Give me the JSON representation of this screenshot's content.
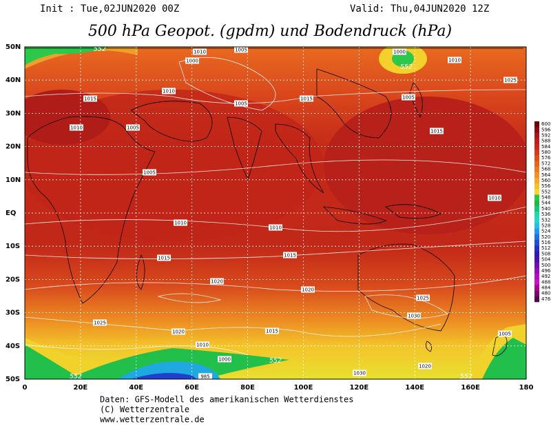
{
  "header": {
    "init": "Init : Tue,02JUN2020 00Z",
    "valid": "Valid: Thu,04JUN2020 12Z",
    "title": "500 hPa Geopot. (gpdm) und Bodendruck (hPa)"
  },
  "map": {
    "lat_labels": [
      "50N",
      "40N",
      "30N",
      "20N",
      "10N",
      "EQ",
      "10S",
      "20S",
      "30S",
      "40S",
      "50S"
    ],
    "lon_labels": [
      "0",
      "20E",
      "40E",
      "60E",
      "80E",
      "100E",
      "120E",
      "140E",
      "160E",
      "180"
    ],
    "isobar_labels": [
      "1010",
      "1005",
      "1000",
      "1010",
      "1000",
      "1010",
      "1015",
      "1005",
      "1015",
      "1005",
      "1025",
      "1015",
      "1010",
      "1005",
      "1005",
      "1010",
      "1010",
      "1010",
      "1015",
      "1015",
      "1020",
      "1020",
      "1025",
      "1030",
      "1025",
      "1015",
      "1020",
      "1010",
      "1030",
      "1020",
      "1005",
      "985",
      "1000"
    ],
    "contour_labels": [
      "552",
      "552",
      "552",
      "552",
      "552"
    ]
  },
  "colorbar": {
    "labels": [
      "600",
      "596",
      "592",
      "588",
      "584",
      "580",
      "576",
      "572",
      "568",
      "564",
      "560",
      "556",
      "552",
      "548",
      "544",
      "540",
      "536",
      "532",
      "528",
      "524",
      "520",
      "516",
      "512",
      "508",
      "504",
      "500",
      "496",
      "492",
      "488",
      "484",
      "480",
      "476"
    ]
  },
  "footer": {
    "lines": [
      "Daten: GFS-Modell des amerikanischen Wetterdienstes",
      "(C) Wetterzentrale",
      "www.wetterzentrale.de"
    ]
  }
}
